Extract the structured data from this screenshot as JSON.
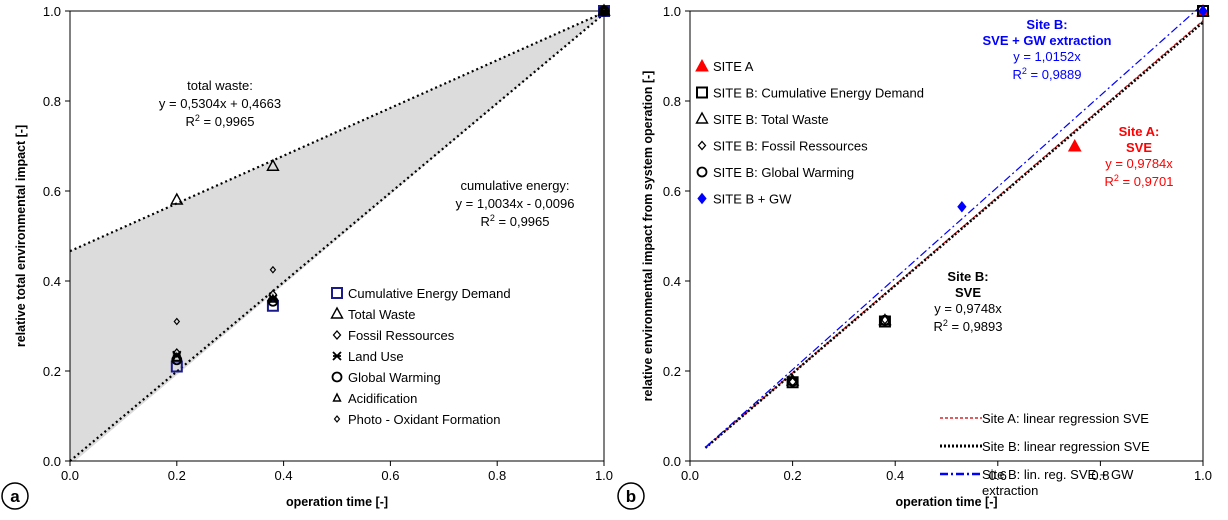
{
  "chart_data": [
    {
      "panel_label": "a",
      "type": "scatter",
      "xlabel": "operation time [-]",
      "ylabel": "relative total environmental impact [-]",
      "xlim": [
        0,
        1
      ],
      "ylim": [
        0,
        1
      ],
      "x_ticks": [
        "0.0",
        "0.2",
        "0.4",
        "0.6",
        "0.8",
        "1.0"
      ],
      "y_ticks": [
        "0.0",
        "0.2",
        "0.4",
        "0.6",
        "0.8",
        "1.0"
      ],
      "grid": false,
      "legend_position": "lower-right",
      "series": [
        {
          "name": "Cumulative Energy Demand",
          "marker": "square",
          "color": "#1a1a8c",
          "points": [
            [
              0.2,
              0.21
            ],
            [
              0.38,
              0.345
            ],
            [
              1.0,
              1.0
            ]
          ]
        },
        {
          "name": "Total Waste",
          "marker": "triangle-open",
          "color": "#000000",
          "points": [
            [
              0.2,
              0.58
            ],
            [
              0.38,
              0.655
            ],
            [
              1.0,
              1.0
            ]
          ]
        },
        {
          "name": "Fossil Ressources",
          "marker": "diamond-open",
          "color": "#000000",
          "points": [
            [
              0.2,
              0.24
            ],
            [
              0.38,
              0.37
            ],
            [
              1.0,
              1.0
            ]
          ]
        },
        {
          "name": "Land Use",
          "marker": "asterisk",
          "color": "#000000",
          "points": [
            [
              0.2,
              0.235
            ],
            [
              0.38,
              0.36
            ],
            [
              1.0,
              1.0
            ]
          ]
        },
        {
          "name": "Global Warming",
          "marker": "circle-open",
          "color": "#000000",
          "points": [
            [
              0.2,
              0.225
            ],
            [
              0.38,
              0.355
            ],
            [
              1.0,
              1.0
            ]
          ]
        },
        {
          "name": "Acidification",
          "marker": "triangle-small",
          "color": "#000000",
          "points": [
            [
              0.2,
              0.23
            ],
            [
              0.38,
              0.36
            ],
            [
              1.0,
              1.0
            ]
          ]
        },
        {
          "name": "Photo - Oxidant Formation",
          "marker": "diamond-small",
          "color": "#000000",
          "points": [
            [
              0.2,
              0.31
            ],
            [
              0.38,
              0.425
            ],
            [
              1.0,
              1.0
            ]
          ]
        }
      ],
      "regression_lines": [
        {
          "slope": 0.5304,
          "intercept": 0.4663,
          "style": "dotted"
        },
        {
          "slope": 1.0034,
          "intercept": -0.0096,
          "style": "dotted"
        }
      ],
      "shaded_region": {
        "description": "grey band between the two regression lines",
        "color": "#dcdcdc"
      },
      "annotations": [
        {
          "lines": [
            "total waste:",
            "y = 0,5304x + 0,4663",
            "R|2| = 0,9965"
          ]
        },
        {
          "lines": [
            "cumulative energy:",
            "y = 1,0034x - 0,0096",
            "R|2| = 0,9965"
          ]
        }
      ]
    },
    {
      "panel_label": "b",
      "type": "scatter",
      "xlabel": "operation time [-]",
      "ylabel": "relative environmental impact from system operation [-]",
      "xlim": [
        0,
        1
      ],
      "ylim": [
        0,
        1
      ],
      "x_ticks": [
        "0.0",
        "0.2",
        "0.4",
        "0.6",
        "0.8",
        "1.0"
      ],
      "y_ticks": [
        "0.0",
        "0.2",
        "0.4",
        "0.6",
        "0.8",
        "1.0"
      ],
      "grid": false,
      "legend_position": "upper-left",
      "series": [
        {
          "name": "SITE A",
          "marker": "triangle-filled",
          "color": "#ff0000",
          "points": [
            [
              0.75,
              0.7
            ],
            [
              1.0,
              1.0
            ]
          ]
        },
        {
          "name": "SITE B: Cumulative Energy Demand",
          "marker": "square",
          "color": "#000000",
          "points": [
            [
              0.2,
              0.175
            ],
            [
              0.38,
              0.31
            ],
            [
              1.0,
              1.0
            ]
          ]
        },
        {
          "name": "SITE B: Total Waste",
          "marker": "triangle-open",
          "color": "#000000",
          "points": [
            [
              0.2,
              0.178
            ],
            [
              0.38,
              0.312
            ]
          ]
        },
        {
          "name": "SITE B: Fossil Ressources",
          "marker": "diamond-open",
          "color": "#000000",
          "points": [
            [
              0.2,
              0.176
            ],
            [
              0.38,
              0.314
            ]
          ]
        },
        {
          "name": "SITE B: Global Warming",
          "marker": "circle-open",
          "color": "#000000",
          "points": [
            [
              0.2,
              0.177
            ],
            [
              0.38,
              0.313
            ]
          ]
        },
        {
          "name": "SITE B + GW",
          "marker": "diamond-filled",
          "color": "#0000ff",
          "points": [
            [
              0.53,
              0.565
            ],
            [
              1.0,
              1.0
            ]
          ]
        }
      ],
      "regression_lines": [
        {
          "name": "Site A: linear regression SVE",
          "slope": 0.9784,
          "color": "#d62728",
          "style": "dashed-thin"
        },
        {
          "name": "Site B: linear regression SVE",
          "slope": 0.9748,
          "color": "#000000",
          "style": "dotted-thick"
        },
        {
          "name": "Site B: lin. reg. SVE + GW",
          "name_line2": "extraction",
          "slope": 1.0152,
          "color": "#0000ff",
          "style": "dashdot"
        }
      ],
      "annotations": [
        {
          "color": "#0000ff",
          "bold_lines": [
            "Site B:",
            "SVE + GW extraction"
          ],
          "lines": [
            "y = 1,0152x",
            "R|2| = 0,9889"
          ]
        },
        {
          "color": "#ff0000",
          "bold_lines": [
            "Site A:",
            "SVE"
          ],
          "lines": [
            "y = 0,9784x",
            "R|2| = 0,9701"
          ]
        },
        {
          "color": "#000000",
          "bold_lines": [
            "Site B:",
            "SVE"
          ],
          "lines": [
            "y = 0,9748x",
            "R|2| = 0,9893"
          ]
        }
      ]
    }
  ]
}
